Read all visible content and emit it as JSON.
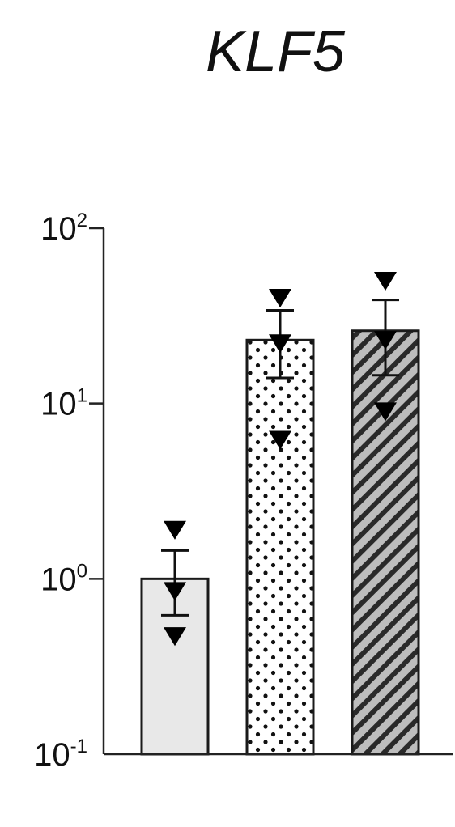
{
  "chart_data": {
    "type": "bar",
    "title": "KLF5",
    "xlabel": "",
    "ylabel": "",
    "yscale": "log",
    "ylim": [
      0.1,
      100
    ],
    "yticks": [
      {
        "base": "10",
        "exp": "2",
        "value": 100
      },
      {
        "base": "10",
        "exp": "1",
        "value": 10
      },
      {
        "base": "10",
        "exp": "0",
        "value": 1
      },
      {
        "base": "10",
        "exp": "-1",
        "value": 0.1
      }
    ],
    "grid": false,
    "legend": "none",
    "categories": [
      "",
      "",
      ""
    ],
    "bars": [
      {
        "value": 1.0,
        "err_low": 0.62,
        "err_high": 1.45,
        "fill": "#e8e8e8",
        "pattern": "solid",
        "points": [
          1.9,
          0.85,
          0.47
        ]
      },
      {
        "value": 23,
        "err_low": 14,
        "err_high": 34,
        "fill": "#ffffff",
        "pattern": "dots",
        "points": [
          40,
          22,
          6.2
        ]
      },
      {
        "value": 26,
        "err_low": 14.5,
        "err_high": 39,
        "fill": "#bdbdbd",
        "pattern": "diagonal-hatch",
        "points": [
          50,
          23,
          9
        ]
      }
    ],
    "point_marker": "triangle-down",
    "colors": {
      "axis": "#222222",
      "marker": "#000000",
      "hatch": "#222222"
    }
  }
}
